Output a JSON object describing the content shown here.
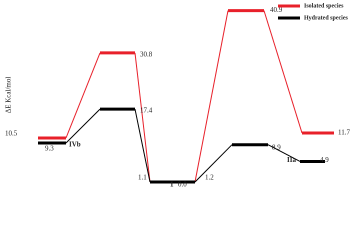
{
  "chart_data": {
    "type": "energy-profile",
    "y_label": "ΔE Kcal/mol",
    "categories": [
      "IVb",
      null,
      "1",
      null,
      "IIa"
    ],
    "ylim": [
      0,
      42
    ],
    "series": [
      {
        "name": "Isolated species",
        "color": "#e8202a",
        "values": [
          10.5,
          30.8,
          0.0,
          40.9,
          11.7
        ],
        "value_labels": [
          "10.5",
          "30.8",
          "0.0",
          "40.9",
          "11.7"
        ]
      },
      {
        "name": "Hydrated species",
        "color": "#000000",
        "values": [
          9.3,
          17.4,
          0.0,
          8.9,
          4.9
        ]
      }
    ],
    "annotations": [
      "1.1",
      "1.2"
    ]
  }
}
